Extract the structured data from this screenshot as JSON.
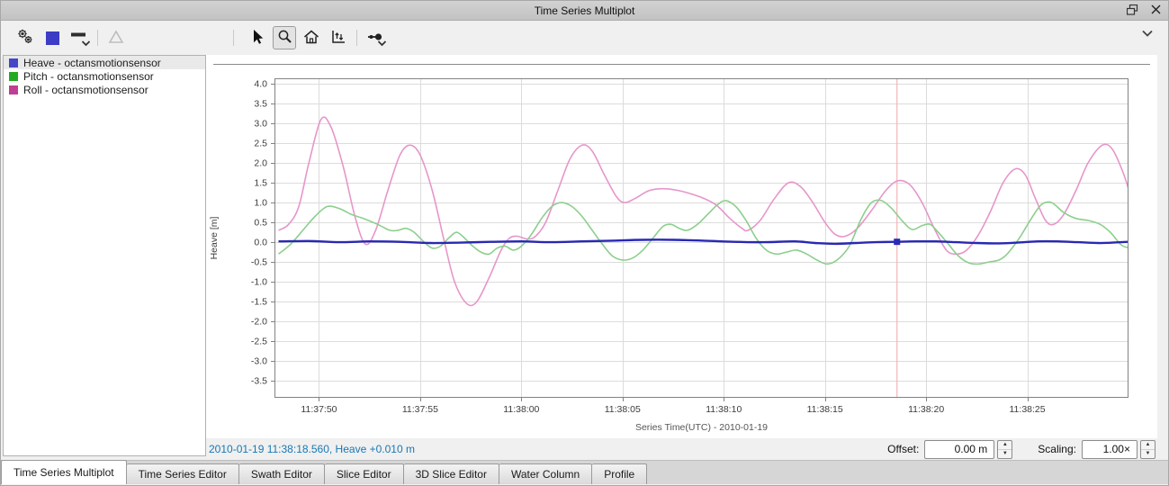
{
  "window": {
    "title": "Time Series Multiplot"
  },
  "titlebar": {
    "icons": [
      "float-window-icon",
      "close-icon"
    ]
  },
  "toolbar": {
    "buttons": [
      {
        "name": "plot-settings-button",
        "icon": "gears-icon"
      },
      {
        "name": "line-color-button",
        "icon": "color-square-icon",
        "color": "#3c3cc4"
      },
      {
        "name": "line-style-button",
        "icon": "line-style-icon",
        "has_menu": true
      },
      {
        "name": "marker-style-button",
        "icon": "triangle-icon",
        "disabled": true
      },
      {
        "name": "pointer-tool-button",
        "icon": "pointer-icon"
      },
      {
        "name": "zoom-tool-button",
        "icon": "magnifier-icon",
        "active": true
      },
      {
        "name": "home-view-button",
        "icon": "home-icon"
      },
      {
        "name": "export-plot-button",
        "icon": "export-plot-icon"
      },
      {
        "name": "snap-pick-button",
        "icon": "snap-point-icon",
        "has_menu": true
      },
      {
        "name": "collapse-button",
        "icon": "chevron-down-icon"
      }
    ]
  },
  "legend": {
    "items": [
      {
        "label": "Heave - octansmotionsensor",
        "color": "#4545c8",
        "selected": true
      },
      {
        "label": "Pitch - octansmotionsensor",
        "color": "#22aa22",
        "selected": false
      },
      {
        "label": "Roll - octansmotionsensor",
        "color": "#bf3f92",
        "selected": false
      }
    ]
  },
  "status": {
    "text": "2010-01-19 11:38:18.560, Heave +0.010 m",
    "color": "#1878b4"
  },
  "controls": {
    "offset_label": "Offset:",
    "offset_value": "0.00 m",
    "scaling_label": "Scaling:",
    "scaling_value": "1.00×"
  },
  "tabs": [
    {
      "label": "Time Series Multiplot",
      "active": true
    },
    {
      "label": "Time Series Editor",
      "active": false
    },
    {
      "label": "Swath Editor",
      "active": false
    },
    {
      "label": "Slice Editor",
      "active": false
    },
    {
      "label": "3D Slice Editor",
      "active": false
    },
    {
      "label": "Water Column",
      "active": false
    },
    {
      "label": "Profile",
      "active": false
    }
  ],
  "chart_data": {
    "type": "line",
    "xlabel": "Series Time(UTC) - 2010-01-19",
    "ylabel": "Heave [m]",
    "grid": true,
    "x_time_origin": "11:37:48",
    "x_domain_seconds": [
      -0.2,
      42.0
    ],
    "ylim": [
      -3.93,
      4.14
    ],
    "y_ticks": [
      4.0,
      3.5,
      3.0,
      2.5,
      2.0,
      1.5,
      1.0,
      0.5,
      0.0,
      -0.5,
      -1.0,
      -1.5,
      -2.0,
      -2.5,
      -3.0,
      -3.5
    ],
    "x_ticks": [
      {
        "t": 2,
        "label": "11:37:50"
      },
      {
        "t": 7,
        "label": "11:37:55"
      },
      {
        "t": 12,
        "label": "11:38:00"
      },
      {
        "t": 17,
        "label": "11:38:05"
      },
      {
        "t": 22,
        "label": "11:38:10"
      },
      {
        "t": 27,
        "label": "11:38:15"
      },
      {
        "t": 32,
        "label": "11:38:20"
      },
      {
        "t": 37,
        "label": "11:38:25"
      }
    ],
    "cursor": {
      "t": 30.56,
      "time_label": "11:38:18.560",
      "series": "Heave",
      "value": 0.01,
      "line_color": "#f2b5b9",
      "marker_color": "#2a2ab8"
    },
    "series": [
      {
        "name": "Roll - octansmotionsensor",
        "color": "#e696ca",
        "width": 1.6,
        "points": [
          [
            0,
            0.3
          ],
          [
            0.5,
            0.45
          ],
          [
            1,
            0.9
          ],
          [
            1.5,
            2.0
          ],
          [
            2.1,
            3.1
          ],
          [
            2.6,
            2.9
          ],
          [
            3.2,
            1.9
          ],
          [
            3.8,
            0.6
          ],
          [
            4.3,
            -0.05
          ],
          [
            4.8,
            0.3
          ],
          [
            5.4,
            1.3
          ],
          [
            6.0,
            2.2
          ],
          [
            6.5,
            2.45
          ],
          [
            7.0,
            2.2
          ],
          [
            7.6,
            1.3
          ],
          [
            8.2,
            0.0
          ],
          [
            8.7,
            -1.0
          ],
          [
            9.3,
            -1.55
          ],
          [
            9.8,
            -1.5
          ],
          [
            10.4,
            -0.9
          ],
          [
            11.0,
            -0.2
          ],
          [
            11.4,
            0.1
          ],
          [
            11.8,
            0.15
          ],
          [
            12.3,
            0.08
          ],
          [
            12.7,
            0.15
          ],
          [
            13.2,
            0.5
          ],
          [
            13.8,
            1.3
          ],
          [
            14.4,
            2.1
          ],
          [
            15.0,
            2.45
          ],
          [
            15.5,
            2.3
          ],
          [
            16.1,
            1.7
          ],
          [
            16.7,
            1.15
          ],
          [
            17.1,
            1.0
          ],
          [
            17.6,
            1.1
          ],
          [
            18.3,
            1.3
          ],
          [
            19.0,
            1.35
          ],
          [
            19.8,
            1.3
          ],
          [
            20.8,
            1.15
          ],
          [
            21.6,
            0.95
          ],
          [
            22.3,
            0.6
          ],
          [
            22.9,
            0.35
          ],
          [
            23.2,
            0.3
          ],
          [
            23.8,
            0.55
          ],
          [
            24.5,
            1.1
          ],
          [
            25.2,
            1.5
          ],
          [
            25.8,
            1.4
          ],
          [
            26.4,
            1.0
          ],
          [
            27.0,
            0.5
          ],
          [
            27.5,
            0.2
          ],
          [
            28.0,
            0.15
          ],
          [
            28.6,
            0.35
          ],
          [
            29.3,
            0.8
          ],
          [
            30.0,
            1.3
          ],
          [
            30.6,
            1.55
          ],
          [
            31.2,
            1.45
          ],
          [
            31.8,
            1.0
          ],
          [
            32.4,
            0.35
          ],
          [
            33.0,
            -0.2
          ],
          [
            33.5,
            -0.3
          ],
          [
            34.0,
            -0.2
          ],
          [
            34.6,
            0.2
          ],
          [
            35.2,
            0.8
          ],
          [
            35.8,
            1.5
          ],
          [
            36.4,
            1.85
          ],
          [
            36.9,
            1.7
          ],
          [
            37.4,
            1.1
          ],
          [
            37.9,
            0.55
          ],
          [
            38.3,
            0.45
          ],
          [
            38.8,
            0.7
          ],
          [
            39.4,
            1.3
          ],
          [
            40.0,
            2.0
          ],
          [
            40.7,
            2.45
          ],
          [
            41.2,
            2.35
          ],
          [
            41.7,
            1.8
          ],
          [
            42.0,
            1.35
          ]
        ]
      },
      {
        "name": "Pitch - octansmotionsensor",
        "color": "#8ccf8c",
        "width": 1.6,
        "points": [
          [
            0,
            -0.3
          ],
          [
            0.6,
            -0.05
          ],
          [
            1.2,
            0.3
          ],
          [
            1.8,
            0.65
          ],
          [
            2.4,
            0.9
          ],
          [
            3.0,
            0.85
          ],
          [
            3.6,
            0.7
          ],
          [
            4.2,
            0.6
          ],
          [
            4.9,
            0.45
          ],
          [
            5.5,
            0.3
          ],
          [
            5.9,
            0.3
          ],
          [
            6.3,
            0.35
          ],
          [
            6.7,
            0.25
          ],
          [
            7.2,
            0.0
          ],
          [
            7.6,
            -0.15
          ],
          [
            8.0,
            -0.1
          ],
          [
            8.4,
            0.1
          ],
          [
            8.8,
            0.25
          ],
          [
            9.2,
            0.1
          ],
          [
            9.6,
            -0.1
          ],
          [
            10.0,
            -0.25
          ],
          [
            10.4,
            -0.3
          ],
          [
            10.8,
            -0.15
          ],
          [
            11.2,
            -0.1
          ],
          [
            11.6,
            -0.2
          ],
          [
            12.0,
            -0.1
          ],
          [
            12.5,
            0.2
          ],
          [
            13.0,
            0.6
          ],
          [
            13.5,
            0.9
          ],
          [
            14.0,
            1.0
          ],
          [
            14.5,
            0.9
          ],
          [
            15.0,
            0.65
          ],
          [
            15.5,
            0.3
          ],
          [
            16.0,
            -0.05
          ],
          [
            16.5,
            -0.35
          ],
          [
            17.0,
            -0.45
          ],
          [
            17.5,
            -0.4
          ],
          [
            18.0,
            -0.2
          ],
          [
            18.5,
            0.1
          ],
          [
            19.0,
            0.4
          ],
          [
            19.4,
            0.45
          ],
          [
            19.8,
            0.35
          ],
          [
            20.2,
            0.3
          ],
          [
            20.7,
            0.45
          ],
          [
            21.2,
            0.7
          ],
          [
            21.7,
            0.95
          ],
          [
            22.1,
            1.05
          ],
          [
            22.6,
            0.9
          ],
          [
            23.1,
            0.55
          ],
          [
            23.6,
            0.1
          ],
          [
            24.1,
            -0.2
          ],
          [
            24.6,
            -0.3
          ],
          [
            25.1,
            -0.25
          ],
          [
            25.6,
            -0.2
          ],
          [
            26.1,
            -0.3
          ],
          [
            26.6,
            -0.45
          ],
          [
            27.1,
            -0.55
          ],
          [
            27.6,
            -0.45
          ],
          [
            28.2,
            -0.1
          ],
          [
            28.8,
            0.6
          ],
          [
            29.3,
            1.0
          ],
          [
            29.8,
            1.05
          ],
          [
            30.3,
            0.85
          ],
          [
            30.8,
            0.55
          ],
          [
            31.3,
            0.32
          ],
          [
            31.8,
            0.42
          ],
          [
            32.2,
            0.45
          ],
          [
            32.6,
            0.25
          ],
          [
            33.1,
            -0.05
          ],
          [
            33.6,
            -0.35
          ],
          [
            34.1,
            -0.52
          ],
          [
            34.6,
            -0.55
          ],
          [
            35.1,
            -0.5
          ],
          [
            35.6,
            -0.45
          ],
          [
            36.0,
            -0.3
          ],
          [
            36.6,
            0.1
          ],
          [
            37.2,
            0.6
          ],
          [
            37.7,
            0.95
          ],
          [
            38.2,
            1.0
          ],
          [
            38.8,
            0.75
          ],
          [
            39.4,
            0.6
          ],
          [
            40.0,
            0.55
          ],
          [
            40.6,
            0.45
          ],
          [
            41.1,
            0.25
          ],
          [
            41.6,
            -0.05
          ],
          [
            41.9,
            -0.13
          ],
          [
            42.0,
            -0.1
          ]
        ]
      },
      {
        "name": "Heave - octansmotionsensor",
        "color": "#2828b4",
        "width": 2.4,
        "points": [
          [
            0,
            0.02
          ],
          [
            1.5,
            0.03
          ],
          [
            3,
            0.0
          ],
          [
            4.5,
            0.02
          ],
          [
            6,
            0.01
          ],
          [
            7.5,
            -0.02
          ],
          [
            9,
            -0.01
          ],
          [
            10.5,
            0.01
          ],
          [
            12,
            0.02
          ],
          [
            13.5,
            0.0
          ],
          [
            15,
            0.02
          ],
          [
            16.5,
            0.04
          ],
          [
            18,
            0.06
          ],
          [
            19.5,
            0.06
          ],
          [
            21,
            0.04
          ],
          [
            22.5,
            0.01
          ],
          [
            24,
            0.0
          ],
          [
            25.5,
            0.02
          ],
          [
            26.5,
            -0.02
          ],
          [
            27.5,
            -0.04
          ],
          [
            28.5,
            -0.02
          ],
          [
            29.5,
            0.0
          ],
          [
            30.56,
            0.01
          ],
          [
            31.5,
            0.02
          ],
          [
            32.5,
            0.02
          ],
          [
            33.5,
            0.0
          ],
          [
            34.5,
            -0.02
          ],
          [
            35.5,
            -0.03
          ],
          [
            36.5,
            -0.01
          ],
          [
            37.5,
            0.02
          ],
          [
            38.5,
            0.02
          ],
          [
            39.5,
            0.0
          ],
          [
            40.5,
            -0.02
          ],
          [
            41.2,
            -0.01
          ],
          [
            42,
            0.01
          ]
        ]
      }
    ]
  }
}
